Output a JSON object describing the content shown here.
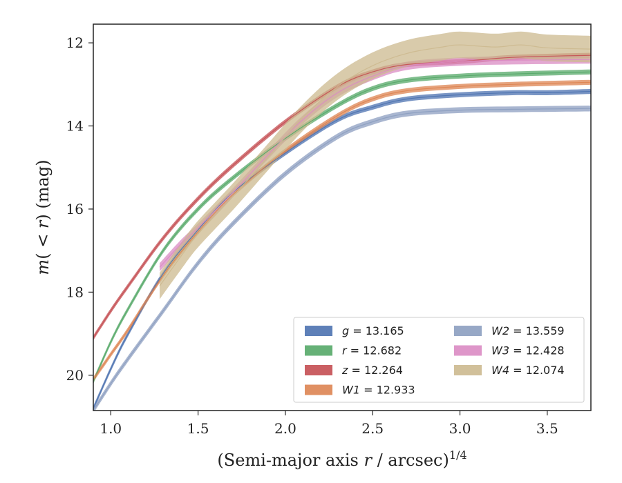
{
  "chart_data": {
    "type": "line",
    "title": "",
    "xlabel_parts": {
      "main": "(Semi-major axis ",
      "var": "r",
      "rest": " / arcsec)",
      "sup": "1/4"
    },
    "ylabel_parts": {
      "pre": "m",
      "mid": "( < ",
      "var": "r",
      "post": ") (mag)"
    },
    "xlim": [
      0.9,
      3.75
    ],
    "ylim": [
      20.85,
      11.55
    ],
    "y_inverted": true,
    "xticks": [
      1.0,
      1.5,
      2.0,
      2.5,
      3.0,
      3.5
    ],
    "xtick_labels": [
      "1.0",
      "1.5",
      "2.0",
      "2.5",
      "3.0",
      "3.5"
    ],
    "yticks": [
      12,
      14,
      16,
      18,
      20
    ],
    "ytick_labels": [
      "12",
      "14",
      "16",
      "18",
      "20"
    ],
    "legend_placement": "lower-right",
    "series": [
      {
        "name": "g",
        "total": "13.165",
        "color": "#4c72b0",
        "band": 0.06,
        "points": [
          [
            0.9,
            20.8
          ],
          [
            1.0,
            19.85
          ],
          [
            1.1,
            19.0
          ],
          [
            1.3,
            17.55
          ],
          [
            1.5,
            16.5
          ],
          [
            1.7,
            15.6
          ],
          [
            2.0,
            14.65
          ],
          [
            2.3,
            13.85
          ],
          [
            2.5,
            13.55
          ],
          [
            2.7,
            13.35
          ],
          [
            3.0,
            13.25
          ],
          [
            3.3,
            13.2
          ],
          [
            3.5,
            13.2
          ],
          [
            3.75,
            13.17
          ]
        ]
      },
      {
        "name": "r",
        "total": "12.682",
        "color": "#55a868",
        "band": 0.06,
        "points": [
          [
            0.9,
            20.15
          ],
          [
            1.0,
            19.2
          ],
          [
            1.1,
            18.4
          ],
          [
            1.3,
            17.0
          ],
          [
            1.5,
            16.0
          ],
          [
            1.7,
            15.25
          ],
          [
            2.0,
            14.3
          ],
          [
            2.3,
            13.5
          ],
          [
            2.5,
            13.1
          ],
          [
            2.7,
            12.9
          ],
          [
            3.0,
            12.8
          ],
          [
            3.3,
            12.75
          ],
          [
            3.75,
            12.7
          ]
        ]
      },
      {
        "name": "z",
        "total": "12.264",
        "color": "#c44e52",
        "band": 0.06,
        "points": [
          [
            0.9,
            19.1
          ],
          [
            1.0,
            18.45
          ],
          [
            1.1,
            17.85
          ],
          [
            1.3,
            16.7
          ],
          [
            1.5,
            15.75
          ],
          [
            1.7,
            14.95
          ],
          [
            2.0,
            13.9
          ],
          [
            2.3,
            13.05
          ],
          [
            2.5,
            12.7
          ],
          [
            2.7,
            12.52
          ],
          [
            3.0,
            12.45
          ],
          [
            3.3,
            12.35
          ],
          [
            3.75,
            12.3
          ]
        ]
      },
      {
        "name": "W1",
        "total": "12.933",
        "color": "#dd8452",
        "band": 0.06,
        "points": [
          [
            0.9,
            20.1
          ],
          [
            1.0,
            19.5
          ],
          [
            1.1,
            18.9
          ],
          [
            1.3,
            17.6
          ],
          [
            1.5,
            16.55
          ],
          [
            1.7,
            15.65
          ],
          [
            2.0,
            14.6
          ],
          [
            2.3,
            13.75
          ],
          [
            2.5,
            13.35
          ],
          [
            2.7,
            13.15
          ],
          [
            3.0,
            13.05
          ],
          [
            3.3,
            13.0
          ],
          [
            3.75,
            12.95
          ]
        ]
      },
      {
        "name": "W2",
        "total": "13.559",
        "color": "#8c9ec0",
        "band": 0.07,
        "points": [
          [
            0.9,
            20.85
          ],
          [
            1.0,
            20.2
          ],
          [
            1.1,
            19.6
          ],
          [
            1.3,
            18.45
          ],
          [
            1.5,
            17.3
          ],
          [
            1.7,
            16.35
          ],
          [
            2.0,
            15.15
          ],
          [
            2.3,
            14.25
          ],
          [
            2.5,
            13.9
          ],
          [
            2.7,
            13.7
          ],
          [
            3.0,
            13.62
          ],
          [
            3.3,
            13.6
          ],
          [
            3.75,
            13.58
          ]
        ]
      },
      {
        "name": "W3",
        "total": "12.428",
        "color": "#da8bc3",
        "band": 0.1,
        "points": [
          [
            1.28,
            17.4
          ],
          [
            1.4,
            16.85
          ],
          [
            1.5,
            16.45
          ],
          [
            1.7,
            15.6
          ],
          [
            1.9,
            14.7
          ],
          [
            2.1,
            13.85
          ],
          [
            2.3,
            13.2
          ],
          [
            2.5,
            12.8
          ],
          [
            2.7,
            12.55
          ],
          [
            3.0,
            12.45
          ],
          [
            3.3,
            12.42
          ],
          [
            3.75,
            12.4
          ]
        ]
      },
      {
        "name": "W4",
        "total": "12.074",
        "color": "#ccb98f",
        "band": 0.32,
        "points": [
          [
            1.28,
            17.85
          ],
          [
            1.4,
            17.15
          ],
          [
            1.5,
            16.6
          ],
          [
            1.7,
            15.7
          ],
          [
            1.9,
            14.75
          ],
          [
            2.1,
            13.8
          ],
          [
            2.3,
            13.05
          ],
          [
            2.5,
            12.55
          ],
          [
            2.7,
            12.25
          ],
          [
            2.9,
            12.1
          ],
          [
            3.0,
            12.05
          ],
          [
            3.2,
            12.1
          ],
          [
            3.35,
            12.05
          ],
          [
            3.5,
            12.12
          ],
          [
            3.75,
            12.15
          ]
        ]
      }
    ]
  }
}
